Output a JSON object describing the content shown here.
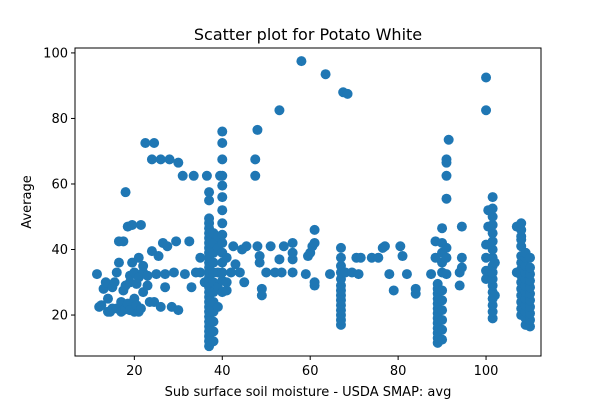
{
  "chart_data": {
    "type": "scatter",
    "title": "Scatter plot for Potato White",
    "xlabel": "Sub surface soil moisture - USDA SMAP: avg",
    "ylabel": "Average",
    "xlim": [
      6.5,
      112.5
    ],
    "ylim": [
      7.5,
      101.5
    ],
    "xticks": [
      20,
      40,
      60,
      80,
      100
    ],
    "yticks": [
      20,
      40,
      60,
      80,
      100
    ],
    "grid": false,
    "marker_color": "#1f77b4",
    "series": [
      {
        "points": [
          [
            11.5,
            32.5
          ],
          [
            12,
            22.5
          ],
          [
            12.5,
            23
          ],
          [
            13,
            28
          ],
          [
            13.5,
            30
          ],
          [
            14,
            21
          ],
          [
            14,
            25
          ],
          [
            14.5,
            21
          ],
          [
            15,
            22
          ],
          [
            15,
            28.5
          ],
          [
            15.5,
            30
          ],
          [
            16,
            22
          ],
          [
            16,
            33
          ],
          [
            16.5,
            36
          ],
          [
            16.5,
            42.5
          ],
          [
            17,
            21
          ],
          [
            17,
            24
          ],
          [
            17.5,
            21.5
          ],
          [
            17.5,
            27.5
          ],
          [
            17.5,
            42.5
          ],
          [
            18,
            22
          ],
          [
            18,
            29
          ],
          [
            18,
            57.5
          ],
          [
            18.5,
            23.5
          ],
          [
            18.5,
            47
          ],
          [
            19,
            21.5
          ],
          [
            19,
            30
          ],
          [
            19,
            32
          ],
          [
            19.5,
            36
          ],
          [
            19.5,
            47.5
          ],
          [
            20,
            21
          ],
          [
            20,
            25
          ],
          [
            20,
            33
          ],
          [
            20.5,
            23
          ],
          [
            20.5,
            29.5
          ],
          [
            21,
            21
          ],
          [
            21,
            31.5
          ],
          [
            21,
            37.5
          ],
          [
            21.5,
            22
          ],
          [
            21.5,
            47.5
          ],
          [
            22,
            27
          ],
          [
            22,
            33
          ],
          [
            22,
            35
          ],
          [
            22.5,
            72.5
          ],
          [
            23,
            29
          ],
          [
            23,
            32
          ],
          [
            23.5,
            24
          ],
          [
            24,
            39.5
          ],
          [
            24,
            67.5
          ],
          [
            24.5,
            72.5
          ],
          [
            24.5,
            24
          ],
          [
            25,
            32.5
          ],
          [
            25.5,
            38
          ],
          [
            26,
            22.5
          ],
          [
            26,
            67.5
          ],
          [
            26.5,
            42
          ],
          [
            27,
            32.5
          ],
          [
            27,
            28.5
          ],
          [
            27.5,
            41
          ],
          [
            28,
            67.5
          ],
          [
            28.5,
            22.5
          ],
          [
            29,
            33
          ],
          [
            29.5,
            42.5
          ],
          [
            30,
            21.5
          ],
          [
            30,
            66.5
          ],
          [
            31,
            62.5
          ],
          [
            31.5,
            32.5
          ],
          [
            32.5,
            42.5
          ],
          [
            33,
            28.5
          ],
          [
            33.5,
            62.5
          ],
          [
            34,
            33
          ],
          [
            35,
            33
          ],
          [
            35,
            37.5
          ],
          [
            36,
            30
          ],
          [
            36.5,
            62.5
          ],
          [
            37,
            10.5
          ],
          [
            37,
            12
          ],
          [
            37,
            13.5
          ],
          [
            37,
            15
          ],
          [
            37,
            16.5
          ],
          [
            37,
            18
          ],
          [
            37,
            19.5
          ],
          [
            37,
            21
          ],
          [
            37,
            22.5
          ],
          [
            37,
            24
          ],
          [
            37,
            25.5
          ],
          [
            37,
            27
          ],
          [
            37,
            28.5
          ],
          [
            37,
            30
          ],
          [
            37,
            31.5
          ],
          [
            37,
            33
          ],
          [
            37,
            34.5
          ],
          [
            37,
            36
          ],
          [
            37,
            37.5
          ],
          [
            37,
            39
          ],
          [
            37,
            40.5
          ],
          [
            37,
            42
          ],
          [
            37,
            43.5
          ],
          [
            37,
            45
          ],
          [
            37,
            46.5
          ],
          [
            37,
            48
          ],
          [
            37,
            49.5
          ],
          [
            37,
            55
          ],
          [
            37,
            57.5
          ],
          [
            38,
            12
          ],
          [
            38,
            15
          ],
          [
            38,
            18
          ],
          [
            38,
            21
          ],
          [
            38,
            24
          ],
          [
            38,
            27
          ],
          [
            38,
            30
          ],
          [
            38,
            33
          ],
          [
            38,
            36
          ],
          [
            38,
            39
          ],
          [
            38,
            42
          ],
          [
            38,
            45
          ],
          [
            39,
            22.5
          ],
          [
            39,
            28.5
          ],
          [
            39,
            33
          ],
          [
            39,
            40.5
          ],
          [
            39,
            44
          ],
          [
            39.5,
            62.5
          ],
          [
            40,
            27
          ],
          [
            40,
            30.5
          ],
          [
            40,
            33
          ],
          [
            40,
            36
          ],
          [
            40,
            39
          ],
          [
            40,
            42
          ],
          [
            40,
            44.5
          ],
          [
            40,
            48
          ],
          [
            40,
            52
          ],
          [
            40,
            56
          ],
          [
            40,
            59.5
          ],
          [
            40,
            62.5
          ],
          [
            40,
            67.5
          ],
          [
            40,
            72.5
          ],
          [
            40,
            76
          ],
          [
            41,
            27.5
          ],
          [
            41,
            30
          ],
          [
            41,
            37.5
          ],
          [
            42,
            33
          ],
          [
            42.5,
            41
          ],
          [
            43,
            35.5
          ],
          [
            44,
            33
          ],
          [
            44.5,
            40
          ],
          [
            45,
            30
          ],
          [
            45.5,
            41
          ],
          [
            47.5,
            62.5
          ],
          [
            47.5,
            67.5
          ],
          [
            48,
            76.5
          ],
          [
            48,
            41
          ],
          [
            48.5,
            38
          ],
          [
            48.5,
            36
          ],
          [
            49,
            28
          ],
          [
            49,
            26
          ],
          [
            50,
            33
          ],
          [
            51,
            41
          ],
          [
            52,
            33
          ],
          [
            53,
            37
          ],
          [
            53,
            82.5
          ],
          [
            53.5,
            33
          ],
          [
            54,
            41
          ],
          [
            56,
            33
          ],
          [
            56,
            37
          ],
          [
            56,
            39
          ],
          [
            56,
            42
          ],
          [
            58,
            97.5
          ],
          [
            59,
            32.5
          ],
          [
            59.5,
            38
          ],
          [
            60,
            39
          ],
          [
            60.5,
            41
          ],
          [
            61,
            29
          ],
          [
            61,
            30
          ],
          [
            61,
            42
          ],
          [
            61,
            46
          ],
          [
            63.5,
            93.5
          ],
          [
            64.5,
            32.5
          ],
          [
            67,
            17
          ],
          [
            67,
            18.5
          ],
          [
            67,
            20
          ],
          [
            67,
            21.5
          ],
          [
            67,
            23
          ],
          [
            67,
            24.5
          ],
          [
            67,
            26
          ],
          [
            67,
            27.5
          ],
          [
            67,
            29
          ],
          [
            67,
            31
          ],
          [
            67,
            33
          ],
          [
            67,
            35
          ],
          [
            67,
            37.5
          ],
          [
            67,
            40.5
          ],
          [
            67.5,
            88
          ],
          [
            68,
            33
          ],
          [
            68.5,
            87.5
          ],
          [
            69.5,
            33
          ],
          [
            70.5,
            37.5
          ],
          [
            71,
            32.5
          ],
          [
            71.5,
            37.5
          ],
          [
            74,
            37.5
          ],
          [
            75.5,
            37.5
          ],
          [
            76.5,
            40.5
          ],
          [
            77,
            41
          ],
          [
            78,
            32.5
          ],
          [
            79,
            27.5
          ],
          [
            80.5,
            41
          ],
          [
            81,
            38
          ],
          [
            82,
            32.5
          ],
          [
            84,
            28
          ],
          [
            84,
            26.5
          ],
          [
            87.5,
            32.5
          ],
          [
            88.5,
            42.5
          ],
          [
            88.5,
            37.5
          ],
          [
            89,
            11.5
          ],
          [
            89,
            13
          ],
          [
            89,
            14.5
          ],
          [
            89,
            16
          ],
          [
            89,
            17.5
          ],
          [
            89,
            19
          ],
          [
            89,
            20.5
          ],
          [
            89,
            22
          ],
          [
            89,
            23.5
          ],
          [
            89,
            25
          ],
          [
            89,
            26.5
          ],
          [
            89,
            28
          ],
          [
            89,
            29.5
          ],
          [
            90,
            12.5
          ],
          [
            90,
            15.5
          ],
          [
            90,
            18.5
          ],
          [
            90,
            21.5
          ],
          [
            90,
            24.5
          ],
          [
            90,
            27.5
          ],
          [
            90,
            33
          ],
          [
            90,
            36
          ],
          [
            90,
            39
          ],
          [
            90,
            42
          ],
          [
            90,
            46.5
          ],
          [
            91,
            32.5
          ],
          [
            91,
            37.5
          ],
          [
            91,
            40.5
          ],
          [
            91,
            55.5
          ],
          [
            91,
            62.5
          ],
          [
            91,
            66.5
          ],
          [
            91,
            67.5
          ],
          [
            91.5,
            73.5
          ],
          [
            94,
            29
          ],
          [
            94,
            33
          ],
          [
            94.5,
            34.5
          ],
          [
            94.5,
            37.5
          ],
          [
            94.5,
            47
          ],
          [
            100,
            31
          ],
          [
            100,
            33.5
          ],
          [
            100,
            37.5
          ],
          [
            100,
            41.5
          ],
          [
            100,
            82.5
          ],
          [
            100,
            92.5
          ],
          [
            100.5,
            47
          ],
          [
            100.5,
            52
          ],
          [
            101.5,
            19
          ],
          [
            101.5,
            21
          ],
          [
            101.5,
            23
          ],
          [
            101.5,
            25
          ],
          [
            101.5,
            27
          ],
          [
            101.5,
            29
          ],
          [
            101.5,
            31
          ],
          [
            101.5,
            33
          ],
          [
            101.5,
            35
          ],
          [
            101.5,
            37.5
          ],
          [
            101.5,
            40
          ],
          [
            101.5,
            42.5
          ],
          [
            101.5,
            45
          ],
          [
            101.5,
            47.5
          ],
          [
            101.5,
            50
          ],
          [
            101.5,
            52.5
          ],
          [
            101.5,
            56
          ],
          [
            102,
            26
          ],
          [
            102,
            36
          ],
          [
            107,
            33
          ],
          [
            107,
            47
          ],
          [
            108,
            20
          ],
          [
            108,
            22
          ],
          [
            108,
            24
          ],
          [
            108,
            26
          ],
          [
            108,
            28
          ],
          [
            108,
            30
          ],
          [
            108,
            32
          ],
          [
            108,
            34
          ],
          [
            108,
            36
          ],
          [
            108,
            38
          ],
          [
            108,
            41
          ],
          [
            108,
            43
          ],
          [
            108,
            44
          ],
          [
            108,
            46
          ],
          [
            108,
            48
          ],
          [
            109,
            17
          ],
          [
            109,
            19
          ],
          [
            109,
            21
          ],
          [
            109,
            23
          ],
          [
            109,
            25
          ],
          [
            109,
            27
          ],
          [
            109,
            29
          ],
          [
            109,
            31
          ],
          [
            109,
            33
          ],
          [
            109,
            35
          ],
          [
            109,
            37.5
          ],
          [
            109,
            39
          ],
          [
            110,
            16.5
          ],
          [
            110,
            18.5
          ],
          [
            110,
            20.5
          ],
          [
            110,
            22.5
          ],
          [
            110,
            24.5
          ],
          [
            110,
            26.5
          ],
          [
            110,
            28.5
          ],
          [
            110,
            30.5
          ],
          [
            110,
            32.5
          ],
          [
            110,
            34.5
          ],
          [
            110,
            37.5
          ]
        ]
      }
    ]
  }
}
